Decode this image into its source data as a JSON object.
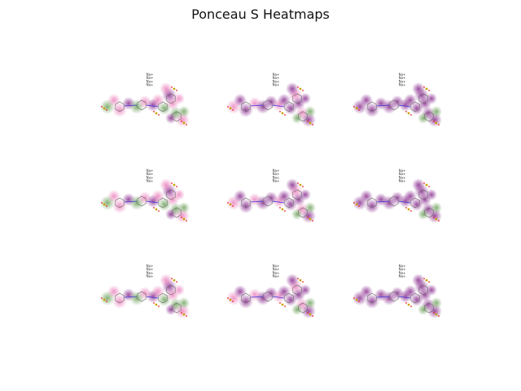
{
  "title": "Ponceau S Heatmaps",
  "colors": {
    "pink": "#e0409a",
    "purple": "#7a1080",
    "green": "#4f8f3a",
    "bond": "#666666",
    "azo": "#3333dd",
    "sulfur": "#c8a400",
    "oxygen": "#ee2222"
  },
  "panels": [
    {
      "label": "Na+ Na+ Na+ Na+",
      "lines": [
        "Na+",
        "Na+",
        "Na+",
        "Na+"
      ],
      "scheme": "mixed-green"
    },
    {
      "label": "Na+ Na+ Na+ Na+",
      "lines": [
        "Na+",
        "Na+",
        "Na+",
        "Na+"
      ],
      "scheme": "purple"
    },
    {
      "label": "Na+ Na+ Na+ Na+",
      "lines": [
        "Na+",
        "Na+",
        "Na+",
        "Na+"
      ],
      "scheme": "purple-dense"
    },
    {
      "label": "Na+ Na+ Na+ Na+",
      "lines": [
        "Na+",
        "Na+",
        "Na+",
        "Na+"
      ],
      "scheme": "mixed-green"
    },
    {
      "label": "Na+ Na+ Na+ Na+",
      "lines": [
        "Na+",
        "Na+",
        "Na+",
        "Na+"
      ],
      "scheme": "purple"
    },
    {
      "label": "Na+ Na+ Na+ Na+",
      "lines": [
        "Na+",
        "Na+",
        "Na+",
        "Na+"
      ],
      "scheme": "purple-dense"
    },
    {
      "label": "Na+ Na+ Na+ Na+",
      "lines": [
        "Na+",
        "Na+",
        "Na+",
        "Na+"
      ],
      "scheme": "mixed-green"
    },
    {
      "label": "Na+ Na+ Na+ Na+",
      "lines": [
        "Na+",
        "Na+",
        "Na+",
        "Na+"
      ],
      "scheme": "purple"
    },
    {
      "label": "Na+ Na+ Na+ Na+",
      "lines": [
        "Na+",
        "Na+",
        "Na+",
        "Na+"
      ],
      "scheme": "purple-dense"
    }
  ]
}
